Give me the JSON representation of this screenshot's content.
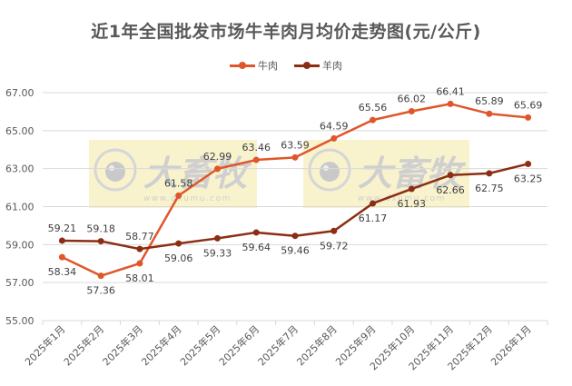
{
  "title": "近1年全国批发市场牛羊肉月均价走势图(元/公斤)",
  "legend": [
    {
      "label": "牛肉",
      "color": "#E0562A"
    },
    {
      "label": "羊肉",
      "color": "#8B2E14"
    }
  ],
  "watermark": {
    "text": "大畜牧",
    "url": "www.dxumu.com"
  },
  "chart_data": {
    "type": "line",
    "title": "近1年全国批发市场牛羊肉月均价走势图(元/公斤)",
    "xlabel": "",
    "ylabel": "",
    "ylim": [
      55,
      67
    ],
    "yticks": [
      "55.00",
      "57.00",
      "59.00",
      "61.00",
      "63.00",
      "65.00",
      "67.00"
    ],
    "grid": true,
    "legend_position": "top",
    "categories": [
      "2025年1月",
      "2025年2月",
      "2025年3月",
      "2025年4月",
      "2025年5月",
      "2025年6月",
      "2025年7月",
      "2025年8月",
      "2025年9月",
      "2025年10月",
      "2025年11月",
      "2025年12月",
      "2026年1月"
    ],
    "series": [
      {
        "name": "牛肉",
        "color": "#E0562A",
        "values": [
          58.34,
          57.36,
          58.01,
          61.58,
          62.99,
          63.46,
          63.59,
          64.59,
          65.56,
          66.02,
          66.41,
          65.89,
          65.69
        ],
        "label_pos": [
          "below",
          "below",
          "below",
          "above",
          "above",
          "above",
          "above",
          "above",
          "above",
          "above",
          "above",
          "above",
          "above"
        ]
      },
      {
        "name": "羊肉",
        "color": "#8B2E14",
        "values": [
          59.21,
          59.18,
          58.77,
          59.06,
          59.33,
          59.64,
          59.46,
          59.72,
          61.17,
          61.93,
          62.66,
          62.75,
          63.25
        ],
        "label_pos": [
          "above",
          "above",
          "above",
          "below",
          "below",
          "below",
          "below",
          "below",
          "below",
          "below",
          "below",
          "below",
          "below"
        ]
      }
    ]
  }
}
